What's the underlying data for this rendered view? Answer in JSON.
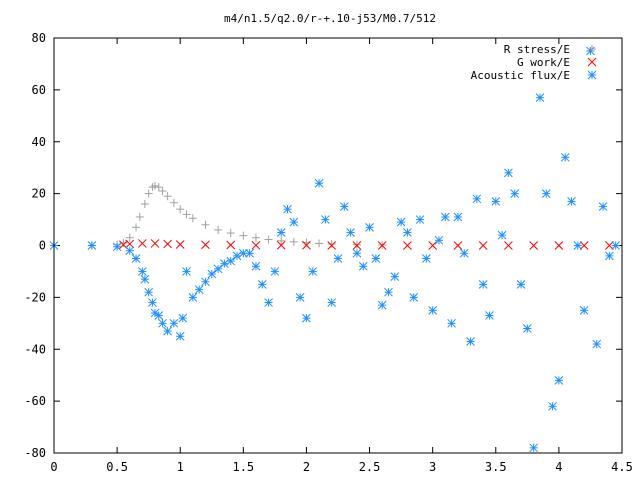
{
  "chart_data": {
    "type": "scatter",
    "title": "m4/n1.5/q2.0/r-+.10-j53/M0.7/512",
    "xlabel": "",
    "ylabel": "",
    "xlim": [
      0,
      4.5
    ],
    "ylim": [
      -80,
      80
    ],
    "x_ticks": [
      0,
      0.5,
      1,
      1.5,
      2,
      2.5,
      3,
      3.5,
      4,
      4.5
    ],
    "x_tick_labels": [
      "0",
      "0.5",
      "1",
      "1.5",
      "2",
      "2.5",
      "3",
      "3.5",
      "4",
      "4.5"
    ],
    "y_ticks": [
      -80,
      -60,
      -40,
      -20,
      0,
      20,
      40,
      60,
      80
    ],
    "y_tick_labels": [
      "-80",
      "-60",
      "-40",
      "-20",
      "0",
      "20",
      "40",
      "60",
      "80"
    ],
    "grid": false,
    "legend_position": "top-right",
    "series": [
      {
        "name": "R stress/E",
        "marker": "plus",
        "color": "#a0a0a0",
        "x": [
          0.0,
          0.3,
          0.5,
          0.55,
          0.6,
          0.65,
          0.68,
          0.72,
          0.75,
          0.78,
          0.8,
          0.83,
          0.86,
          0.9,
          0.95,
          1.0,
          1.05,
          1.1,
          1.2,
          1.3,
          1.4,
          1.5,
          1.6,
          1.7,
          1.8,
          1.9,
          2.0,
          2.1,
          2.2,
          2.4,
          2.6
        ],
        "y": [
          0.0,
          0.0,
          0.3,
          1.0,
          3.0,
          7.0,
          11.0,
          16.0,
          20.0,
          22.5,
          23.0,
          22.5,
          21.0,
          19.0,
          16.5,
          14.0,
          12.0,
          10.5,
          8.0,
          6.0,
          4.8,
          3.8,
          3.0,
          2.3,
          1.8,
          1.4,
          1.1,
          0.8,
          0.6,
          0.3,
          0.2
        ]
      },
      {
        "name": "G work/E",
        "marker": "cross",
        "color": "#ff0000",
        "x": [
          0.55,
          0.6,
          0.7,
          0.8,
          0.9,
          1.0,
          1.2,
          1.4,
          1.6,
          1.8,
          2.0,
          2.2,
          2.4,
          2.6,
          2.8,
          3.0,
          3.2,
          3.4,
          3.6,
          3.8,
          4.0,
          4.2,
          4.4
        ],
        "y": [
          0.3,
          0.6,
          0.8,
          0.8,
          0.6,
          0.4,
          0.3,
          0.2,
          0.1,
          0.1,
          0.1,
          0.0,
          0.0,
          0.0,
          0.0,
          0.0,
          0.0,
          0.0,
          0.0,
          0.0,
          0.0,
          0.0,
          0.0
        ]
      },
      {
        "name": "Acoustic flux/E",
        "marker": "star",
        "color": "#1e90ff",
        "x": [
          0.0,
          0.3,
          0.5,
          0.6,
          0.65,
          0.7,
          0.72,
          0.75,
          0.78,
          0.8,
          0.83,
          0.86,
          0.9,
          0.95,
          1.0,
          1.02,
          1.05,
          1.1,
          1.15,
          1.2,
          1.25,
          1.3,
          1.35,
          1.4,
          1.45,
          1.5,
          1.55,
          1.6,
          1.65,
          1.7,
          1.75,
          1.8,
          1.85,
          1.9,
          1.95,
          2.0,
          2.05,
          2.1,
          2.15,
          2.2,
          2.25,
          2.3,
          2.35,
          2.4,
          2.45,
          2.5,
          2.55,
          2.6,
          2.65,
          2.7,
          2.75,
          2.8,
          2.85,
          2.9,
          2.95,
          3.0,
          3.05,
          3.1,
          3.15,
          3.2,
          3.25,
          3.3,
          3.35,
          3.4,
          3.45,
          3.5,
          3.55,
          3.6,
          3.65,
          3.7,
          3.75,
          3.8,
          3.85,
          3.9,
          3.95,
          4.0,
          4.05,
          4.1,
          4.15,
          4.2,
          4.25,
          4.3,
          4.35,
          4.4,
          4.45
        ],
        "y": [
          0.0,
          0.0,
          -0.5,
          -2.0,
          -5.0,
          -10.0,
          -13.0,
          -18.0,
          -22.0,
          -26.0,
          -27.0,
          -30.0,
          -33.0,
          -30.0,
          -35.0,
          -28.0,
          -10.0,
          -20.0,
          -17.0,
          -14.0,
          -11.0,
          -9.0,
          -7.0,
          -6.0,
          -4.0,
          -3.0,
          -3.0,
          -8.0,
          -15.0,
          -22.0,
          -10.0,
          5.0,
          14.0,
          9.0,
          -20.0,
          -28.0,
          -10.0,
          24.0,
          10.0,
          -22.0,
          -5.0,
          15.0,
          5.0,
          -3.0,
          -8.0,
          7.0,
          -5.0,
          -23.0,
          -18.0,
          -12.0,
          9.0,
          5.0,
          -20.0,
          10.0,
          -5.0,
          -25.0,
          2.0,
          11.0,
          -30.0,
          11.0,
          -3.0,
          -37.0,
          18.0,
          -15.0,
          -27.0,
          17.0,
          4.0,
          28.0,
          20.0,
          -15.0,
          -32.0,
          -78.0,
          57.0,
          20.0,
          -62.0,
          -52.0,
          34.0,
          17.0,
          0.0,
          -25.0,
          75.0,
          -38.0,
          15.0,
          -4.0,
          0.0
        ]
      }
    ]
  }
}
